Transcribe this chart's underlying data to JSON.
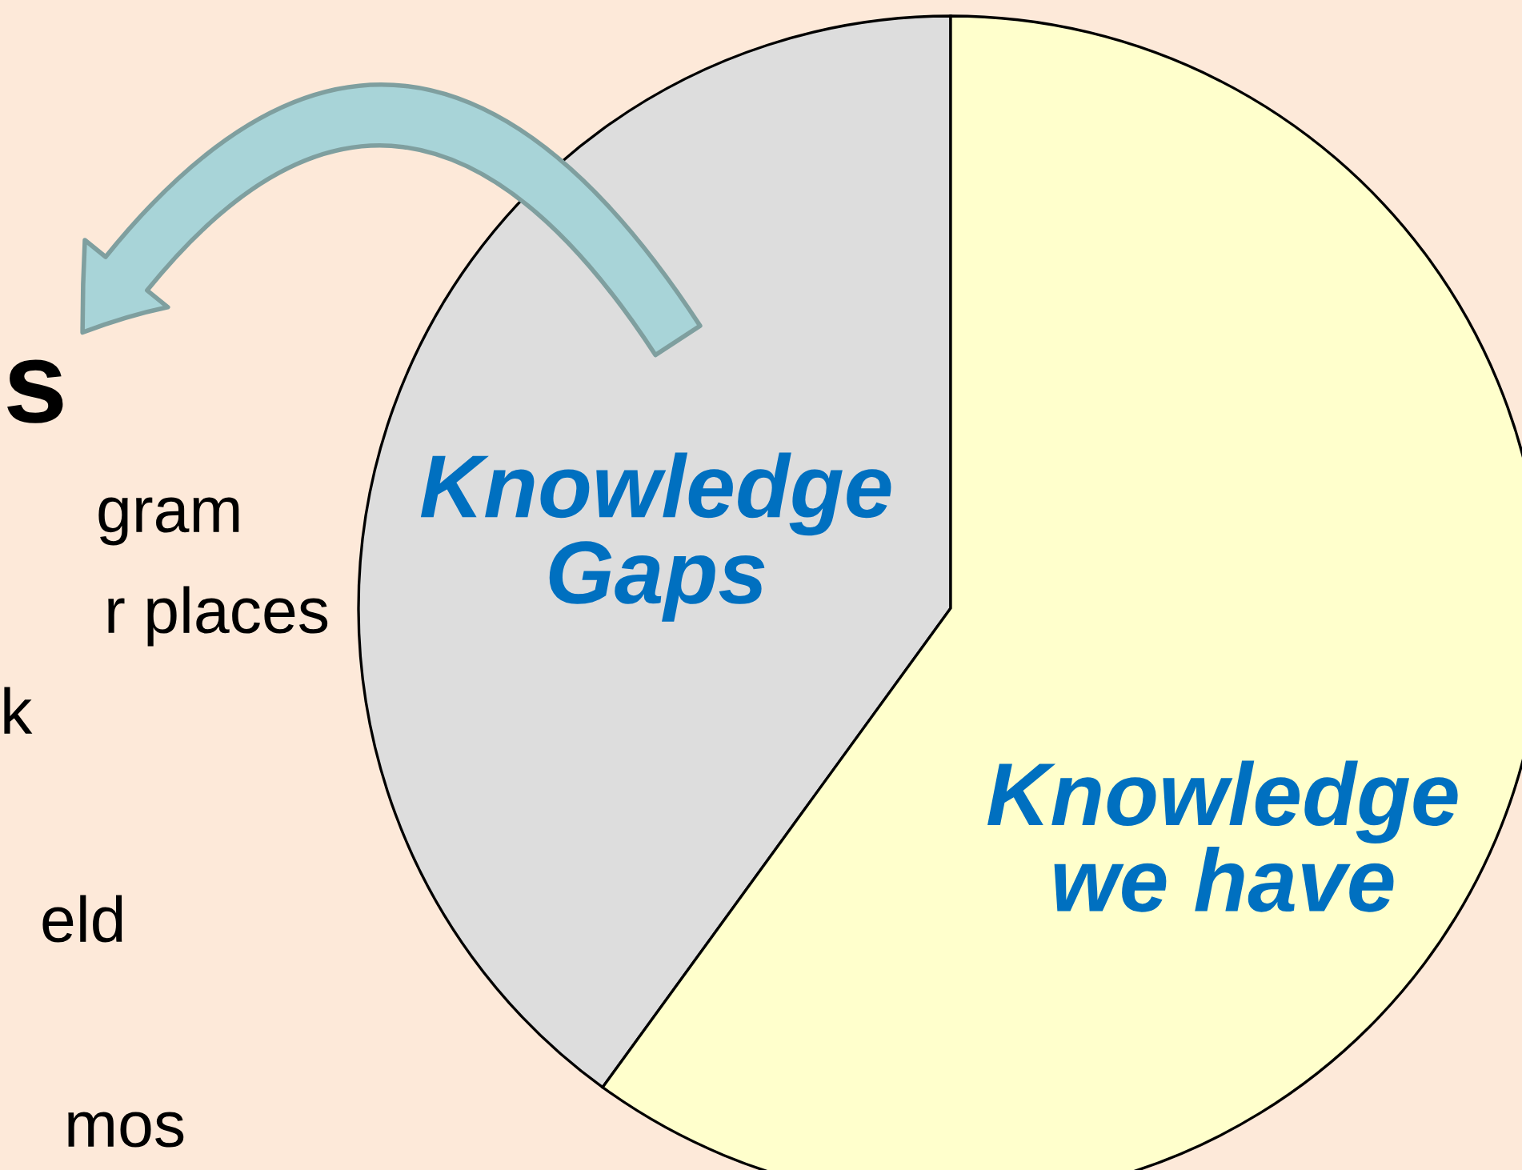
{
  "chart_data": {
    "type": "pie",
    "categories": [
      "Knowledge\nGaps",
      "Knowledge\nwe have"
    ],
    "values": [
      40,
      60
    ],
    "colors": [
      "#dddddd",
      "#ffffcc"
    ],
    "annotations": [
      "s",
      "gram",
      "r places",
      "k",
      "eld",
      "mos"
    ]
  }
}
